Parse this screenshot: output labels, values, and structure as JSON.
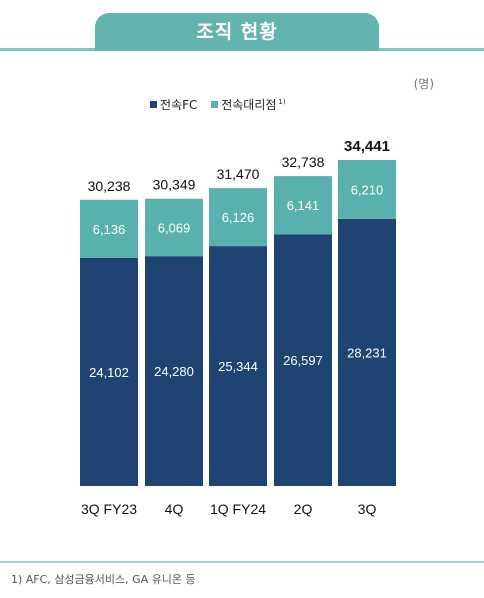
{
  "header": {
    "title": "조직 현황"
  },
  "unit_label": "(명)",
  "legend": {
    "items": [
      {
        "label": "전속FC",
        "color": "#1f4472"
      },
      {
        "label": "전속대리점",
        "color": "#59b1ad",
        "sup": "1)"
      }
    ]
  },
  "footnote": "1) AFC, 삼성금융서비스, GA 유니온 등",
  "chart_data": {
    "type": "bar",
    "stacked": true,
    "categories": [
      "3Q FY23",
      "4Q",
      "1Q FY24",
      "2Q",
      "3Q"
    ],
    "series": [
      {
        "name": "전속FC",
        "values": [
          24102,
          24280,
          25344,
          26597,
          28231
        ],
        "labels": [
          "24,102",
          "24,280",
          "25,344",
          "26,597",
          "28,231"
        ],
        "color": "#1f4472"
      },
      {
        "name": "전속대리점",
        "values": [
          6136,
          6069,
          6126,
          6141,
          6210
        ],
        "labels": [
          "6,136",
          "6,069",
          "6,126",
          "6,141",
          "6,210"
        ],
        "color": "#59b1ad"
      }
    ],
    "totals": [
      30238,
      30349,
      31470,
      32738,
      34441
    ],
    "total_labels": [
      "30,238",
      "30,349",
      "31,470",
      "32,738",
      "34,441"
    ],
    "highlight_last_total": true,
    "ylim": [
      0,
      34441
    ],
    "grid": false,
    "title": "조직 현황",
    "xlabel": "",
    "ylabel": ""
  }
}
